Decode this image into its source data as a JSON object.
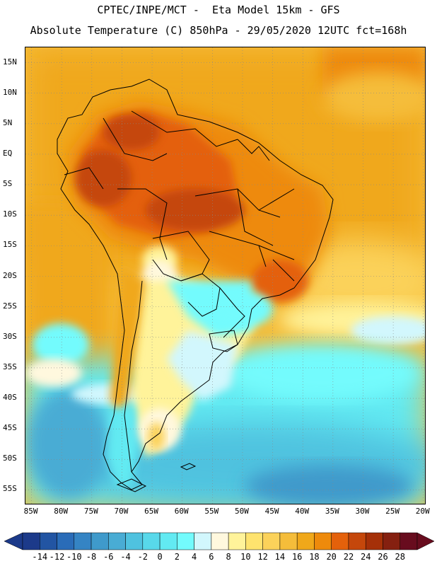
{
  "header": {
    "line1": "CPTEC/INPE/MCT -  Eta Model 15km - GFS",
    "line2": "Absolute Temperature (C) 850hPa - 29/05/2020 12UTC fct=168h"
  },
  "axes": {
    "lat_labels": [
      "15N",
      "10N",
      "5N",
      "EQ",
      "5S",
      "10S",
      "15S",
      "20S",
      "25S",
      "30S",
      "35S",
      "40S",
      "45S",
      "50S",
      "55S"
    ],
    "lon_labels": [
      "85W",
      "80W",
      "75W",
      "70W",
      "65W",
      "60W",
      "55W",
      "50W",
      "45W",
      "40W",
      "35W",
      "30W",
      "25W",
      "20W"
    ],
    "lat_range": [
      17.5,
      -57.5
    ],
    "lon_range": [
      -86,
      -19.5
    ]
  },
  "colorbar": {
    "labels": [
      "-14",
      "-12",
      "-10",
      "-8",
      "-6",
      "-4",
      "-2",
      "0",
      "2",
      "4",
      "6",
      "8",
      "10",
      "12",
      "14",
      "16",
      "18",
      "20",
      "22",
      "24",
      "26",
      "28"
    ],
    "colors": [
      "#1c3a8a",
      "#2255a3",
      "#2a6cb8",
      "#3584c4",
      "#3f9acb",
      "#49acd4",
      "#4fc2df",
      "#58d8ea",
      "#62eaf2",
      "#73fbfd",
      "#d2f7fd",
      "#fff8de",
      "#fff39a",
      "#fee36e",
      "#fbd25a",
      "#f5bd3a",
      "#f0a81a",
      "#ee8a0b",
      "#e4610b",
      "#c5470b",
      "#a53008",
      "#852010",
      "#680c1e"
    ]
  },
  "map": {
    "variable": "temperature-850hPa",
    "region": "South America"
  }
}
